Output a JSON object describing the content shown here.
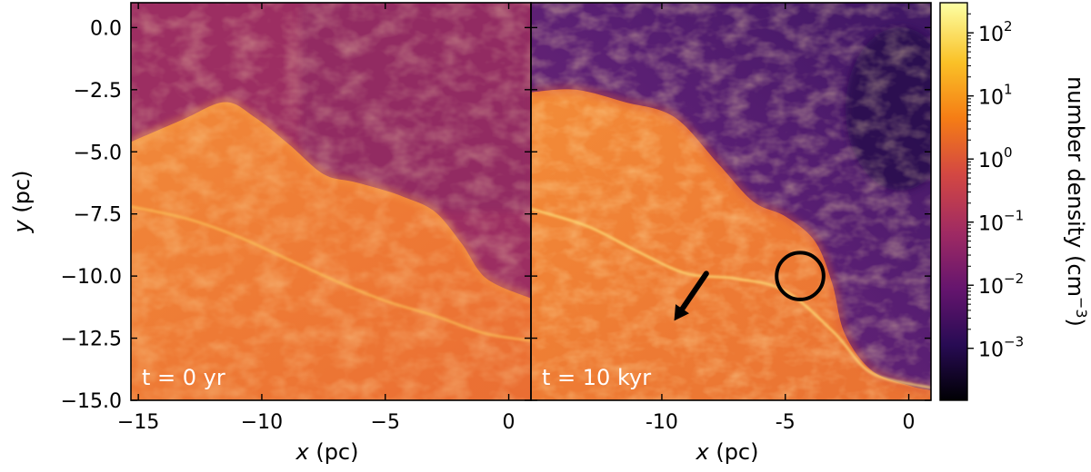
{
  "chart_data": {
    "type": "heatmap",
    "colormap": "inferno",
    "colors": {
      "background": "#ffffff",
      "frame": "#000000",
      "panel_text": "#ffffff",
      "annotation": "#000000"
    },
    "colorbar": {
      "label": "number density (cm",
      "label_exp": "−3",
      "label_close": ")",
      "scale": "log",
      "range": [
        0.00015,
        300
      ],
      "ticks": [
        {
          "base": "10",
          "exp": "2",
          "value": 100
        },
        {
          "base": "10",
          "exp": "1",
          "value": 10
        },
        {
          "base": "10",
          "exp": "0",
          "value": 1
        },
        {
          "base": "10",
          "exp": "−1",
          "value": 0.1
        },
        {
          "base": "10",
          "exp": "−2",
          "value": 0.01
        },
        {
          "base": "10",
          "exp": "−3",
          "value": 0.001
        }
      ]
    },
    "xlim": [
      -15.3,
      0.9
    ],
    "ylim": [
      -15.0,
      1.0
    ],
    "ylabel": "y",
    "yunit": " (pc)",
    "yticks": [
      {
        "label": "0.0",
        "value": 0.0
      },
      {
        "label": "−2.5",
        "value": -2.5
      },
      {
        "label": "−5.0",
        "value": -5.0
      },
      {
        "label": "−7.5",
        "value": -7.5
      },
      {
        "label": "−10.0",
        "value": -10.0
      },
      {
        "label": "−12.5",
        "value": -12.5
      },
      {
        "label": "−15.0",
        "value": -15.0
      }
    ],
    "panels": [
      {
        "time_label": "t = 0 yr",
        "xlabel": "x",
        "xunit": " (pc)",
        "xticks": [
          {
            "label": "−15",
            "value": -15
          },
          {
            "label": "−10",
            "value": -10
          },
          {
            "label": "−5",
            "value": -5
          },
          {
            "label": "0",
            "value": 0
          }
        ],
        "front_points": [
          [
            -15.3,
            -4.6
          ],
          [
            -13.2,
            -3.7
          ],
          [
            -11.5,
            -3.0
          ],
          [
            -10.3,
            -3.6
          ],
          [
            -8.9,
            -4.7
          ],
          [
            -7.5,
            -5.9
          ],
          [
            -6.3,
            -6.2
          ],
          [
            -5.2,
            -6.5
          ],
          [
            -4.3,
            -6.8
          ],
          [
            -3.0,
            -7.4
          ],
          [
            -1.9,
            -8.7
          ],
          [
            -0.9,
            -10.1
          ],
          [
            0.9,
            -10.9
          ]
        ],
        "ridge_points": [
          [
            -15.3,
            -7.2
          ],
          [
            -13.0,
            -7.7
          ],
          [
            -11.0,
            -8.4
          ],
          [
            -9.0,
            -9.3
          ],
          [
            -7.0,
            -10.2
          ],
          [
            -5.0,
            -11.0
          ],
          [
            -3.0,
            -11.6
          ],
          [
            -1.0,
            -12.3
          ],
          [
            0.9,
            -12.6
          ]
        ]
      },
      {
        "time_label": "t = 10 kyr",
        "xlabel": "x",
        "xunit": " (pc)",
        "xticks": [
          {
            "label": "-10",
            "value": -10
          },
          {
            "label": "-5",
            "value": -5
          },
          {
            "label": "0",
            "value": 0
          }
        ],
        "front_points": [
          [
            -15.3,
            -2.6
          ],
          [
            -13.5,
            -2.5
          ],
          [
            -11.5,
            -3.0
          ],
          [
            -9.5,
            -3.6
          ],
          [
            -7.7,
            -5.5
          ],
          [
            -6.3,
            -7.0
          ],
          [
            -5.0,
            -7.6
          ],
          [
            -3.8,
            -8.6
          ],
          [
            -3.1,
            -10.3
          ],
          [
            -2.6,
            -12.3
          ],
          [
            -1.5,
            -13.8
          ],
          [
            0.0,
            -14.4
          ],
          [
            0.9,
            -14.6
          ]
        ],
        "ridge_points": [
          [
            -15.3,
            -7.3
          ],
          [
            -13.0,
            -8.0
          ],
          [
            -11.0,
            -9.0
          ],
          [
            -9.0,
            -9.9
          ],
          [
            -7.0,
            -10.1
          ],
          [
            -5.0,
            -10.6
          ],
          [
            -3.0,
            -12.3
          ],
          [
            -1.5,
            -13.9
          ],
          [
            0.9,
            -14.5
          ]
        ],
        "annotations": {
          "circle": {
            "cx": -4.4,
            "cy": -10.0,
            "r": 0.95
          },
          "arrow": {
            "from": [
              -8.2,
              -9.9
            ],
            "to": [
              -9.5,
              -11.8
            ]
          }
        }
      }
    ]
  }
}
